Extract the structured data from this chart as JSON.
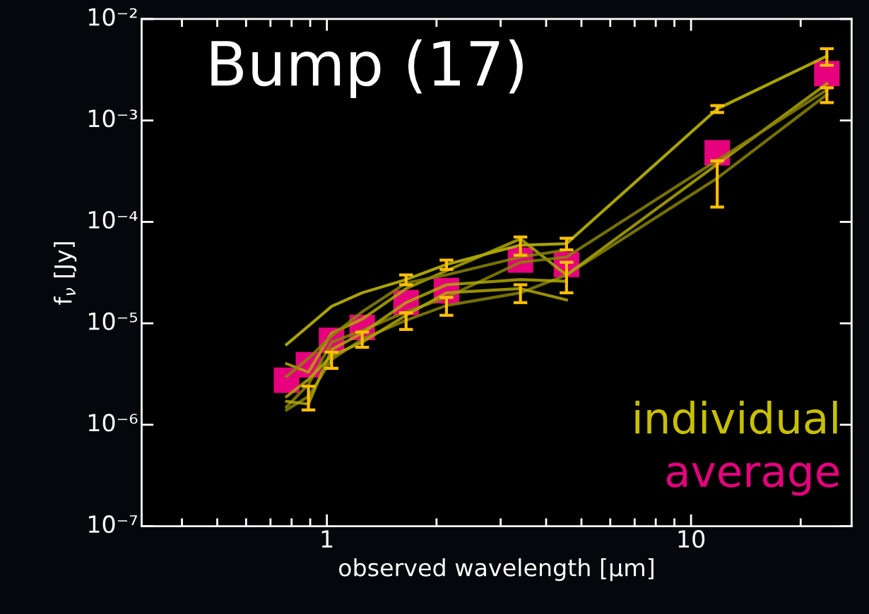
{
  "chart_data": {
    "type": "line",
    "xlabel": "observed wavelength [μm]",
    "ylabel": "f$_{ν}$ [Jy]",
    "log": "xy",
    "xlim": [
      0.31,
      27.6
    ],
    "ylim": [
      1e-07,
      0.01
    ],
    "xticks": [
      1,
      10
    ],
    "yticks": [
      {
        "value": 1e-07,
        "label": "10⁻⁷"
      },
      {
        "value": 1e-06,
        "label": "10⁻⁶"
      },
      {
        "value": 1e-05,
        "label": "10⁻⁵"
      },
      {
        "value": 0.0001,
        "label": "10⁻⁴"
      },
      {
        "value": 0.001,
        "label": "10⁻³"
      },
      {
        "value": 0.01,
        "label": "10⁻²"
      }
    ],
    "annotations": [
      "Bump (17)"
    ],
    "legend": "bottom right",
    "grid": false,
    "series": [
      {
        "name": "individual",
        "color": "#c8c000",
        "x": [
          0.775,
          0.89,
          1.03,
          1.25,
          1.65,
          2.13,
          3.4,
          4.55,
          11.8,
          23.6
        ],
        "values": [
          6.2e-06,
          9.4e-06,
          1.47e-05,
          2e-05,
          2.7e-05,
          3.8e-05,
          5.9e-05,
          6.1e-05,
          0.0013,
          0.0043
        ],
        "errors": [
          null,
          null,
          null,
          null,
          3e-06,
          4e-06,
          1.2e-05,
          8e-06,
          0.0001,
          0.0008
        ]
      },
      {
        "color": "#8a8400",
        "x": [
          0.775,
          0.89,
          1.03,
          1.25,
          1.65,
          2.13,
          3.4,
          4.55,
          11.8,
          23.6
        ],
        "values": [
          1.4e-06,
          1.9e-06,
          4.4e-06,
          7e-06,
          1.07e-05,
          1.5e-05,
          2e-05,
          3e-05,
          0.00027,
          0.0018
        ],
        "errors": [
          null,
          5e-07,
          8e-07,
          1.2e-06,
          2e-06,
          3e-06,
          4e-06,
          1e-05,
          0.00013,
          0.0003
        ]
      },
      {
        "color": "#b0a800",
        "x": [
          0.775,
          0.89,
          1.03,
          1.25,
          1.65,
          2.13,
          3.4,
          4.55,
          23.6
        ],
        "values": [
          4e-06,
          3.3e-06,
          8e-06,
          1.1e-05,
          2.2e-05,
          3.3e-05,
          6.8e-05,
          3e-05,
          0.0023
        ]
      },
      {
        "color": "#8a8400",
        "x": [
          0.775,
          0.89,
          1.03,
          1.25,
          1.65,
          2.13,
          3.4,
          4.55,
          23.6
        ],
        "values": [
          1.5e-06,
          2.5e-06,
          6.5e-06,
          8.5e-06,
          1.3e-05,
          1.8e-05,
          4e-05,
          4.5e-05,
          0.002
        ]
      },
      {
        "color": "#b0a800",
        "x": [
          0.775,
          0.89,
          1.03,
          1.25,
          1.65,
          2.13,
          3.4,
          4.55
        ],
        "values": [
          1.7e-06,
          1.6e-06,
          5.5e-06,
          8e-06,
          1.6e-05,
          2.4e-05,
          2.7e-05,
          2.6e-05
        ]
      },
      {
        "color": "#8a8400",
        "x": [
          0.775,
          0.89,
          1.03,
          1.25,
          1.65,
          2.13,
          3.4,
          4.55
        ],
        "values": [
          3e-06,
          4.5e-06,
          7.5e-06,
          1.3e-05,
          2.5e-05,
          3e-05,
          4.5e-05,
          5.3e-05
        ]
      },
      {
        "color": "#b0a800",
        "x": [
          0.775,
          0.89,
          1.03,
          1.25,
          1.65,
          2.13,
          3.4,
          4.55
        ],
        "values": [
          1.9e-06,
          2.8e-06,
          4.8e-06,
          6.5e-06,
          1.2e-05,
          2e-05,
          2.2e-05,
          1.7e-05
        ]
      },
      {
        "name": "average",
        "type": "scatter",
        "marker": "square",
        "color": "#e6007e",
        "x": [
          0.775,
          0.89,
          1.03,
          1.25,
          1.65,
          2.13,
          3.4,
          4.55,
          11.8,
          23.6
        ],
        "values": [
          2.75e-06,
          3.9e-06,
          6.8e-06,
          9.1e-06,
          1.6e-05,
          2.1e-05,
          4.2e-05,
          3.8e-05,
          0.00048,
          0.0029
        ]
      }
    ]
  }
}
